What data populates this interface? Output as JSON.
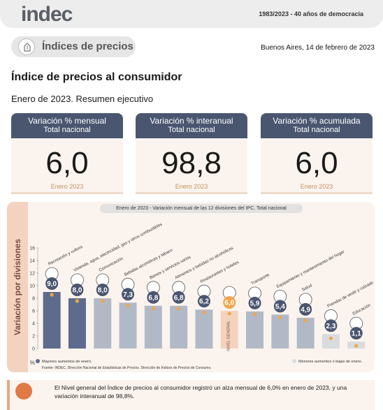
{
  "header": {
    "logo_text": "indec",
    "tagline": "1983/2023 - 40 años de democracia"
  },
  "section_pill": {
    "label": "Índices de precios",
    "icon": "price-index-icon"
  },
  "place_date": "Buenos Aires, 14 de febrero de 2023",
  "report": {
    "title": "Índice de precios al consumidor",
    "subtitle": "Enero de 2023. Resumen ejecutivo"
  },
  "cards": [
    {
      "title": "Variación % mensual",
      "scope": "Total nacional",
      "value": "6,0",
      "period": "Enero 2023"
    },
    {
      "title": "Variación % interanual",
      "scope": "Total nacional",
      "value": "98,8",
      "period": "Enero 2023"
    },
    {
      "title": "Variación % acumulada",
      "scope": "Total nacional",
      "value": "6,0",
      "period": "Enero 2023"
    }
  ],
  "chart_section_label": "Variación por divisiones",
  "chart_data": {
    "type": "bar",
    "title": "Enero de 2023 - Variación mensual de las 12 divisiones del IPC. Total nacional",
    "ylabel": "%",
    "ylim": [
      0,
      16
    ],
    "yticks": [
      "0",
      "2",
      "4",
      "6",
      "8",
      "10",
      "12",
      "14",
      "16"
    ],
    "categories": [
      "Recreación y cultura",
      "Vivienda, agua, electricidad, gas y otros combustibles",
      "Comunicación",
      "Bebidas alcohólicas y tabaco",
      "Bienes y servicios varios",
      "Alimentos y bebidas no alcohólicas",
      "Restaurantes y hoteles",
      "Nivel general",
      "Transporte",
      "Equipamiento y mantenimiento del hogar",
      "Salud",
      "Prendas de vestir y calzado",
      "Educación"
    ],
    "values": [
      9.0,
      8.0,
      8.0,
      7.3,
      6.8,
      6.8,
      6.2,
      6.0,
      5.9,
      5.4,
      4.9,
      2.3,
      1.1
    ],
    "value_labels": [
      "9,0",
      "8,0",
      "8,0",
      "7,3",
      "6,8",
      "6,8",
      "6,2",
      "6,0",
      "5,9",
      "5,4",
      "4,9",
      "2,3",
      "1,1"
    ],
    "groups": [
      "high",
      "high",
      "mid",
      "mid",
      "mid",
      "mid",
      "mid",
      "general",
      "mid",
      "mid",
      "mid",
      "low",
      "low"
    ],
    "colors": {
      "high": "#5d6c8c",
      "mid": "#b2b9c6",
      "general": "#f3d3bd",
      "low": "#d9dcdf",
      "marker": "#f0a64a"
    },
    "general_bar_label": "NIVEL GENERAL",
    "legend": [
      {
        "label": "Mayores aumentos de enero.",
        "group": "high"
      },
      {
        "label": "Menores aumentos o bajas de enero.",
        "group": "low"
      }
    ],
    "source": "Fuente: INDEC, Dirección Nacional de Estadísticas de Precios. Dirección de Índices de Precios de Consumo."
  },
  "note": {
    "text": "El Nivel general del Índice de precios al consumidor registró un alza mensual de 6,0% en enero de 2023, y una variación interanual de 98,8%."
  }
}
